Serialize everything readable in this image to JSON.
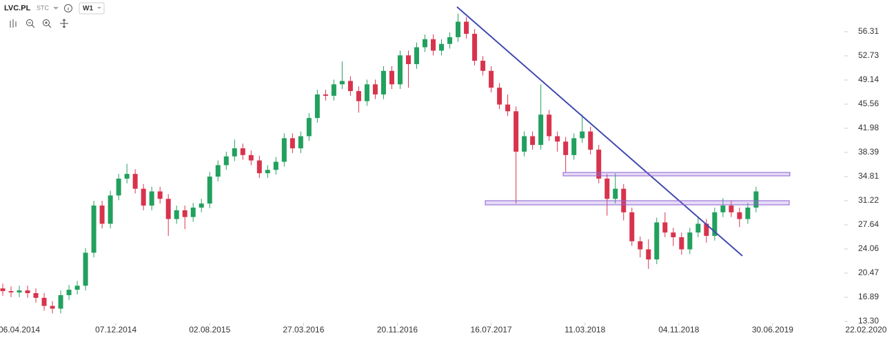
{
  "header": {
    "symbol": "LVC.PL",
    "kind": "STC",
    "interval": "W1"
  },
  "chart_data": {
    "type": "candlestick",
    "x": [
      "23.02.2014",
      "16.03.2014",
      "06.04.2014",
      "27.04.2014",
      "18.05.2014",
      "08.06.2014",
      "29.06.2014",
      "20.07.2014",
      "10.08.2014",
      "31.08.2014",
      "21.09.2014",
      "12.10.2014",
      "02.11.2014",
      "23.11.2014",
      "14.12.2014",
      "04.01.2015",
      "25.01.2015",
      "15.02.2015",
      "08.03.2015",
      "29.03.2015",
      "19.04.2015",
      "10.05.2015",
      "31.05.2015",
      "21.06.2015",
      "12.07.2015",
      "02.08.2015",
      "23.08.2015",
      "13.09.2015",
      "04.10.2015",
      "25.10.2015",
      "15.11.2015",
      "06.12.2015",
      "27.12.2015",
      "17.01.2016",
      "07.02.2016",
      "28.02.2016",
      "20.03.2016",
      "10.04.2016",
      "01.05.2016",
      "22.05.2016",
      "12.06.2016",
      "03.07.2016",
      "24.07.2016",
      "14.08.2016",
      "04.09.2016",
      "25.09.2016",
      "16.10.2016",
      "06.11.2016",
      "27.11.2016",
      "18.12.2016",
      "08.01.2017",
      "29.01.2017",
      "19.02.2017",
      "12.03.2017",
      "02.04.2017",
      "23.04.2017",
      "14.05.2017",
      "04.06.2017",
      "25.06.2017",
      "16.07.2017",
      "06.08.2017",
      "27.08.2017",
      "17.09.2017",
      "08.10.2017",
      "29.10.2017",
      "19.11.2017",
      "10.12.2017",
      "31.12.2017",
      "21.01.2018",
      "11.02.2018",
      "04.03.2018",
      "25.03.2018",
      "15.04.2018",
      "06.05.2018",
      "27.05.2018",
      "17.06.2018",
      "08.07.2018",
      "29.07.2018",
      "19.08.2018",
      "09.09.2018",
      "30.09.2018",
      "21.10.2018",
      "11.11.2018",
      "02.12.2018",
      "23.12.2018",
      "13.01.2019",
      "03.02.2019",
      "24.02.2019",
      "17.03.2019",
      "07.04.2019",
      "28.04.2019",
      "19.05.2019"
    ],
    "open": [
      18.2,
      17.8,
      17.6,
      17.9,
      17.5,
      16.8,
      15.6,
      15.2,
      17.2,
      18.0,
      18.6,
      23.5,
      30.5,
      27.8,
      32.0,
      34.5,
      35.2,
      33.0,
      30.5,
      32.6,
      31.5,
      28.5,
      29.8,
      28.8,
      30.2,
      30.8,
      34.8,
      36.5,
      37.8,
      39.0,
      38.0,
      37.2,
      35.3,
      35.8,
      37.0,
      40.5,
      39.0,
      40.8,
      43.5,
      47.0,
      46.8,
      48.5,
      49.0,
      47.5,
      46.0,
      48.5,
      47.0,
      50.5,
      48.5,
      52.8,
      51.5,
      54.0,
      55.2,
      53.5,
      54.5,
      55.5,
      57.8,
      56.0,
      52.0,
      50.5,
      48.0,
      45.5,
      44.5,
      38.5,
      40.8,
      39.5,
      44.0,
      40.8,
      40.0,
      38.0,
      40.5,
      41.5,
      38.8,
      34.5,
      31.5,
      33.0,
      29.5,
      25.2,
      24.0,
      22.5,
      28.0,
      26.5,
      25.8,
      24.0,
      26.5,
      27.8,
      26.0,
      29.5,
      30.5,
      29.5,
      28.5,
      30.2
    ],
    "high": [
      18.9,
      18.5,
      18.6,
      18.6,
      18.2,
      17.5,
      16.3,
      17.9,
      18.7,
      19.3,
      24.2,
      31.2,
      31.2,
      32.7,
      35.2,
      36.7,
      35.9,
      33.7,
      33.3,
      33.3,
      32.2,
      30.5,
      30.5,
      30.9,
      31.5,
      35.5,
      37.2,
      38.5,
      40.3,
      39.7,
      38.7,
      37.9,
      36.5,
      37.7,
      41.2,
      41.2,
      41.5,
      44.2,
      47.7,
      47.7,
      49.2,
      51.9,
      49.7,
      48.2,
      49.2,
      49.2,
      51.2,
      51.2,
      53.5,
      53.5,
      54.7,
      55.9,
      55.9,
      55.2,
      56.2,
      59.0,
      58.5,
      56.7,
      52.7,
      51.2,
      48.7,
      47.0,
      45.2,
      41.5,
      41.5,
      48.5,
      44.7,
      41.5,
      40.7,
      41.2,
      44.0,
      42.2,
      39.5,
      35.2,
      35.3,
      33.7,
      30.2,
      25.9,
      25.5,
      28.7,
      29.5,
      27.2,
      26.5,
      27.2,
      28.9,
      28.5,
      30.2,
      31.6,
      31.2,
      30.2,
      30.9,
      33.3
    ],
    "low": [
      17.1,
      16.9,
      16.9,
      16.8,
      16.1,
      14.9,
      14.5,
      14.5,
      16.5,
      17.3,
      17.9,
      22.8,
      27.1,
      27.1,
      31.3,
      33.8,
      32.3,
      29.8,
      29.8,
      30.8,
      26.0,
      27.8,
      27.0,
      28.1,
      29.5,
      30.1,
      34.1,
      35.8,
      37.1,
      37.3,
      36.5,
      34.6,
      34.6,
      35.1,
      36.3,
      38.3,
      38.3,
      40.1,
      42.8,
      46.1,
      46.1,
      47.8,
      46.8,
      44.3,
      45.3,
      46.3,
      46.3,
      47.8,
      47.8,
      48.0,
      50.8,
      53.3,
      52.8,
      52.8,
      53.8,
      54.8,
      55.3,
      51.3,
      49.8,
      47.3,
      44.8,
      43.8,
      30.8,
      37.8,
      38.8,
      38.8,
      40.1,
      38.5,
      35.5,
      37.3,
      39.8,
      38.1,
      33.8,
      29.0,
      30.8,
      28.3,
      24.5,
      22.8,
      21.1,
      21.8,
      25.8,
      24.5,
      23.2,
      23.3,
      25.8,
      25.0,
      25.3,
      28.8,
      28.8,
      27.3,
      27.8,
      29.5
    ],
    "close": [
      17.8,
      17.6,
      17.9,
      17.5,
      16.8,
      15.6,
      15.2,
      17.2,
      18.0,
      18.6,
      23.5,
      30.5,
      27.8,
      32.0,
      34.5,
      35.2,
      33.0,
      30.5,
      32.6,
      31.5,
      28.5,
      29.8,
      28.8,
      30.2,
      30.8,
      34.8,
      36.5,
      37.8,
      39.0,
      38.0,
      37.2,
      35.3,
      35.8,
      37.0,
      40.5,
      39.0,
      40.8,
      43.5,
      47.0,
      46.8,
      48.5,
      49.0,
      47.5,
      46.0,
      48.5,
      47.0,
      50.5,
      48.5,
      52.8,
      51.5,
      54.0,
      55.2,
      53.5,
      54.5,
      55.5,
      57.8,
      56.0,
      52.0,
      50.5,
      48.0,
      45.5,
      44.5,
      38.5,
      40.8,
      39.5,
      44.0,
      40.8,
      40.0,
      38.0,
      40.5,
      41.5,
      38.8,
      34.5,
      31.5,
      33.0,
      29.5,
      25.2,
      24.0,
      22.5,
      28.0,
      26.5,
      25.8,
      24.0,
      26.5,
      27.8,
      26.0,
      29.5,
      30.5,
      29.5,
      28.5,
      30.2,
      32.6
    ],
    "up_color": "#22a05e",
    "down_color": "#d8334d",
    "xlim": [
      "16.02.2014",
      "29.12.2019"
    ],
    "xticks": [
      "06.04.2014",
      "07.12.2014",
      "02.08.2015",
      "27.03.2016",
      "20.11.2016",
      "16.07.2017",
      "11.03.2018",
      "04.11.2018",
      "30.06.2019",
      "22.02.2020"
    ],
    "ylim": [
      13.1,
      61.02
    ],
    "yticks": [
      56.31,
      52.73,
      49.14,
      45.56,
      41.98,
      38.39,
      34.81,
      31.22,
      27.64,
      24.06,
      20.47,
      16.89,
      {
        "value": 13.3,
        "label": "13.30"
      }
    ]
  }
}
